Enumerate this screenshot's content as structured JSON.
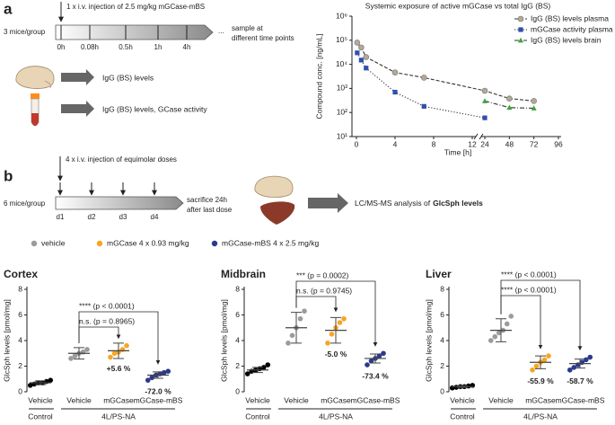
{
  "panel_a": {
    "label": "a",
    "group": "3 mice/group",
    "injection": "1 x i.v. injection of 2.5 mg/kg mGCase-mBS",
    "timepoints": [
      "0h",
      "0.08h",
      "0.5h",
      "1h",
      "4h"
    ],
    "ellipsis": "...",
    "sample_note": [
      "sample at",
      "different time points"
    ],
    "readouts": [
      "IgG (BS) levels",
      "IgG (BS) levels, GCase activity"
    ]
  },
  "panel_b": {
    "label": "b",
    "group": "6 mice/group",
    "injection": "4 x i.v. injection of equimolar doses",
    "days": [
      "d1",
      "d2",
      "d3",
      "d4"
    ],
    "sacrifice_note": [
      "sacrifice 24h",
      "after last dose"
    ],
    "analysis": "LC/MS-MS analysis of",
    "analysis_bold": "GlcSph levels",
    "legend": [
      {
        "name": "vehicle",
        "color": "#9b9b9b"
      },
      {
        "name": "mGCase 4 x 0.93 mg/kg",
        "color": "#f5a623"
      },
      {
        "name": "mGCase-mBS 4 x 2.5 mg/kg",
        "color": "#2b3a8c"
      }
    ]
  },
  "chart_data": [
    {
      "type": "line",
      "title": "Systemic exposure of active mGCase vs total IgG (BS)",
      "ylabel": "Compound conc. [ng/mL]",
      "xlabel": "Time [h]",
      "log_y": true,
      "ylim": [
        10,
        1000000
      ],
      "yticks": [
        {
          "value": 10,
          "label": "10¹"
        },
        {
          "value": 100,
          "label": "10²"
        },
        {
          "value": 1000,
          "label": "10³"
        },
        {
          "value": 10000,
          "label": "10⁴"
        },
        {
          "value": 100000,
          "label": "10⁵"
        },
        {
          "value": 1000000,
          "label": "10⁶"
        }
      ],
      "xlim": [
        0,
        96
      ],
      "x_break": [
        12,
        24
      ],
      "xticks": [
        0,
        4,
        8,
        12,
        24,
        48,
        72,
        96
      ],
      "legend": "top-right",
      "series": [
        {
          "name": "IgG (BS) levels plasma",
          "color": "#b3a899",
          "marker": "circle",
          "dash": "dashed",
          "x": [
            0.08,
            0.5,
            1,
            4,
            7,
            24,
            48,
            72
          ],
          "values": [
            80000,
            50000,
            20000,
            4600,
            2800,
            800,
            380,
            300
          ]
        },
        {
          "name": "mGCase activity plasma",
          "color": "#2f4fb0",
          "marker": "square",
          "dash": "dotted",
          "x": [
            0.08,
            0.5,
            1,
            4,
            7,
            24
          ],
          "values": [
            30000,
            15000,
            7000,
            700,
            180,
            60
          ]
        },
        {
          "name": "IgG (BS) levels brain",
          "color": "#3aa63a",
          "marker": "triangle",
          "dash": "dashdot",
          "x": [
            24,
            48,
            72
          ],
          "values": [
            300,
            160,
            150
          ]
        }
      ]
    },
    {
      "type": "dot",
      "title": "Cortex",
      "ylabel": "GlcSph levels [pmol/mg]",
      "ylim": [
        0,
        8
      ],
      "yticks": [
        0,
        2,
        4,
        6,
        8
      ],
      "categories": [
        "Vehicle",
        "Vehicle",
        "mGCase",
        "mGCase-mBS"
      ],
      "groups": [
        "Control",
        "4L/PS-NA"
      ],
      "colors": [
        "#000000",
        "#9b9b9b",
        "#f5a623",
        "#2b3a8c"
      ],
      "points": [
        [
          0.5,
          0.6,
          0.7,
          0.7,
          0.8,
          0.9
        ],
        [
          2.6,
          2.8,
          3.0,
          3.1,
          3.3
        ],
        [
          2.7,
          3.0,
          3.1,
          3.3,
          3.6
        ],
        [
          0.9,
          1.1,
          1.3,
          1.4,
          1.5,
          1.6
        ]
      ],
      "means": [
        0.7,
        3.0,
        3.2,
        1.3
      ],
      "sd": [
        0.15,
        0.45,
        0.6,
        0.25
      ],
      "comparisons": [
        "n.s. (p = 0.8965)",
        "**** (p < 0.0001)"
      ],
      "changes": [
        "+5.6 %",
        "-72.0 %"
      ]
    },
    {
      "type": "dot",
      "title": "Midbrain",
      "ylabel": "GlcSph levels [pmol/mg]",
      "ylim": [
        0,
        8
      ],
      "yticks": [
        0,
        2,
        4,
        6,
        8
      ],
      "categories": [
        "Vehicle",
        "Vehicle",
        "mGCase",
        "mGCase-mBS"
      ],
      "groups": [
        "Control",
        "4L/PS-NA"
      ],
      "colors": [
        "#000000",
        "#9b9b9b",
        "#f5a623",
        "#2b3a8c"
      ],
      "points": [
        [
          1.4,
          1.6,
          1.7,
          1.8,
          1.9,
          2.1
        ],
        [
          3.8,
          4.4,
          5.0,
          5.7,
          6.3
        ],
        [
          3.8,
          4.5,
          5.0,
          5.4,
          5.7
        ],
        [
          2.1,
          2.4,
          2.6,
          2.8,
          3.0
        ]
      ],
      "means": [
        1.7,
        5.0,
        4.8,
        2.6
      ],
      "sd": [
        0.2,
        1.2,
        1.0,
        0.35
      ],
      "comparisons": [
        "n.s. (p = 0.9745)",
        "*** (p = 0.0002)"
      ],
      "changes": [
        "-5.0 %",
        "-73.4 %"
      ]
    },
    {
      "type": "dot",
      "title": "Liver",
      "ylabel": "GlcSph levels [pmol/mg]",
      "ylim": [
        0,
        8
      ],
      "yticks": [
        0,
        2,
        4,
        6,
        8
      ],
      "categories": [
        "Vehicle",
        "Vehicle",
        "mGCase",
        "mGCase-mBS"
      ],
      "groups": [
        "Control",
        "4L/PS-NA"
      ],
      "colors": [
        "#000000",
        "#9b9b9b",
        "#f5a623",
        "#2b3a8c"
      ],
      "points": [
        [
          0.3,
          0.35,
          0.4,
          0.4,
          0.45,
          0.5
        ],
        [
          4.0,
          4.3,
          4.6,
          4.8,
          5.3,
          5.9
        ],
        [
          1.7,
          2.0,
          2.3,
          2.5,
          2.8
        ],
        [
          1.7,
          1.9,
          2.1,
          2.3,
          2.5,
          2.7
        ]
      ],
      "means": [
        0.4,
        4.8,
        2.3,
        2.2
      ],
      "sd": [
        0.07,
        0.9,
        0.5,
        0.35
      ],
      "comparisons": [
        "**** (p < 0.0001)",
        "**** (p < 0.0001)"
      ],
      "changes": [
        "-55.9 %",
        "-58.7 %"
      ]
    }
  ]
}
